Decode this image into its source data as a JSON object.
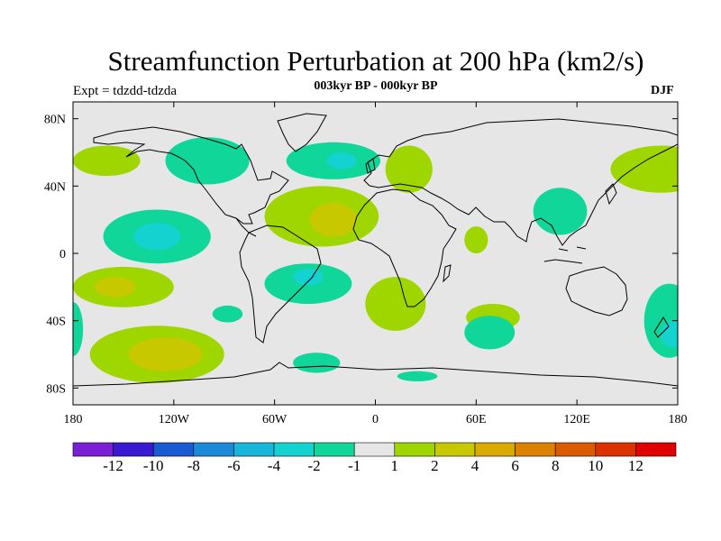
{
  "title": "Streamfunction Perturbation at 200 hPa (km2/s)",
  "experiment": "Expt = tdzdd-tdzda",
  "period": "003kyr BP - 000kyr BP",
  "season": "DJF",
  "map": {
    "lon_range": [
      -180,
      180
    ],
    "lat_range": [
      -90,
      90
    ],
    "background_color": "#e6e6e6",
    "x_ticks": [
      {
        "lon": -180,
        "label": "180"
      },
      {
        "lon": -120,
        "label": "120W"
      },
      {
        "lon": -60,
        "label": "60W"
      },
      {
        "lon": 0,
        "label": "0"
      },
      {
        "lon": 60,
        "label": "60E"
      },
      {
        "lon": 120,
        "label": "120E"
      },
      {
        "lon": 180,
        "label": "180"
      }
    ],
    "y_ticks": [
      {
        "lat": 80,
        "label": "80N"
      },
      {
        "lat": 40,
        "label": "40N"
      },
      {
        "lat": 0,
        "label": "0"
      },
      {
        "lat": -40,
        "label": "40S"
      },
      {
        "lat": -80,
        "label": "80S"
      }
    ]
  },
  "colorbar": {
    "colors": [
      "#7a1fd6",
      "#3a1ad1",
      "#1a5ad2",
      "#1a8ad8",
      "#17b6da",
      "#14d2cf",
      "#11d69a",
      "#e6e6e6",
      "#a0d600",
      "#c8c800",
      "#d9aa00",
      "#dc8200",
      "#dc5a00",
      "#dc3200",
      "#e00000"
    ],
    "labels": [
      "-12",
      "-10",
      "-8",
      "-6",
      "-4",
      "-2",
      "-1",
      "1",
      "2",
      "4",
      "6",
      "8",
      "10",
      "12"
    ]
  },
  "anomalies": [
    {
      "lon": -160,
      "lat": 55,
      "rx": 20,
      "ry": 9,
      "level": 1
    },
    {
      "lon": -100,
      "lat": 55,
      "rx": 25,
      "ry": 14,
      "level": -1
    },
    {
      "lon": -25,
      "lat": 55,
      "rx": 28,
      "ry": 11,
      "level": -1
    },
    {
      "lon": -20,
      "lat": 55,
      "rx": 9,
      "ry": 5,
      "level": -2
    },
    {
      "lon": 20,
      "lat": 50,
      "rx": 14,
      "ry": 14,
      "level": 1
    },
    {
      "lon": 170,
      "lat": 50,
      "rx": 30,
      "ry": 14,
      "level": 1
    },
    {
      "lon": -130,
      "lat": 10,
      "rx": 32,
      "ry": 16,
      "level": -1
    },
    {
      "lon": -130,
      "lat": 10,
      "rx": 14,
      "ry": 8,
      "level": -2
    },
    {
      "lon": -32,
      "lat": 22,
      "rx": 34,
      "ry": 18,
      "level": 1
    },
    {
      "lon": -25,
      "lat": 20,
      "rx": 14,
      "ry": 10,
      "level": 2
    },
    {
      "lon": 110,
      "lat": 25,
      "rx": 16,
      "ry": 14,
      "level": -1
    },
    {
      "lon": 60,
      "lat": 8,
      "rx": 7,
      "ry": 8,
      "level": 1
    },
    {
      "lon": -150,
      "lat": -20,
      "rx": 30,
      "ry": 12,
      "level": 1
    },
    {
      "lon": -155,
      "lat": -20,
      "rx": 12,
      "ry": 6,
      "level": 2
    },
    {
      "lon": -40,
      "lat": -18,
      "rx": 26,
      "ry": 12,
      "level": -1
    },
    {
      "lon": -40,
      "lat": -14,
      "rx": 9,
      "ry": 5,
      "level": -2
    },
    {
      "lon": 12,
      "lat": -30,
      "rx": 18,
      "ry": 16,
      "level": 1
    },
    {
      "lon": 70,
      "lat": -38,
      "rx": 16,
      "ry": 8,
      "level": 1
    },
    {
      "lon": -88,
      "lat": -36,
      "rx": 9,
      "ry": 5,
      "level": -1
    },
    {
      "lon": 68,
      "lat": -47,
      "rx": 15,
      "ry": 10,
      "level": -1
    },
    {
      "lon": 175,
      "lat": -40,
      "rx": 15,
      "ry": 22,
      "level": -1
    },
    {
      "lon": 178,
      "lat": -48,
      "rx": 8,
      "ry": 8,
      "level": -2
    },
    {
      "lon": -180,
      "lat": -45,
      "rx": 6,
      "ry": 16,
      "level": -1
    },
    {
      "lon": -130,
      "lat": -60,
      "rx": 40,
      "ry": 17,
      "level": 1
    },
    {
      "lon": -125,
      "lat": -60,
      "rx": 22,
      "ry": 10,
      "level": 2
    },
    {
      "lon": -35,
      "lat": -65,
      "rx": 14,
      "ry": 6,
      "level": -1
    },
    {
      "lon": 25,
      "lat": -73,
      "rx": 12,
      "ry": 3,
      "level": -1
    }
  ]
}
